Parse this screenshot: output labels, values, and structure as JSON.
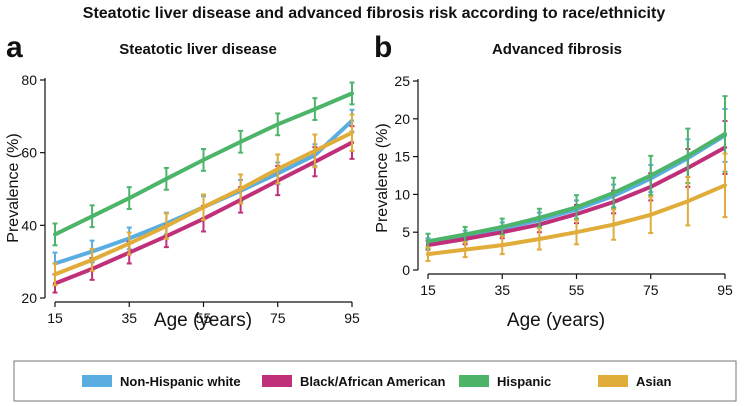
{
  "figure_title": "Steatotic liver disease and advanced fibrosis risk according to race/ethnicity",
  "colors": {
    "nhw": "#5aade0",
    "black": "#c0307a",
    "hispanic": "#4db56a",
    "asian": "#e0ac3a",
    "axis": "#111111"
  },
  "legend": [
    {
      "key": "nhw",
      "label": "Non-Hispanic white"
    },
    {
      "key": "black",
      "label": "Black/African American"
    },
    {
      "key": "hispanic",
      "label": "Hispanic"
    },
    {
      "key": "asian",
      "label": "Asian"
    }
  ],
  "chart_data": [
    {
      "type": "line",
      "panel": "a",
      "title": "Steatotic liver disease",
      "xlabel": "Age (years)",
      "ylabel": "Prevalence (%)",
      "xlim": [
        15,
        95
      ],
      "ylim": [
        20,
        80
      ],
      "xticks": [
        15,
        35,
        55,
        75,
        95
      ],
      "yticks": [
        20,
        40,
        60,
        80
      ],
      "x": [
        15,
        25,
        35,
        45,
        55,
        65,
        75,
        85,
        95
      ],
      "series": [
        {
          "key": "nhw",
          "name": "Non-Hispanic white",
          "values": [
            29.5,
            32.8,
            36.4,
            40.5,
            45.0,
            49.5,
            54.3,
            59.3,
            68.8
          ],
          "err": [
            3.0,
            3.0,
            3.0,
            3.0,
            3.0,
            3.0,
            3.0,
            3.0,
            3.0
          ]
        },
        {
          "key": "black",
          "name": "Black/African American",
          "values": [
            24.0,
            28.0,
            32.5,
            37.0,
            41.8,
            47.0,
            52.3,
            57.5,
            62.8
          ],
          "err": [
            2.5,
            3.0,
            3.0,
            3.0,
            3.5,
            3.5,
            4.0,
            4.0,
            4.5
          ]
        },
        {
          "key": "hispanic",
          "name": "Hispanic",
          "values": [
            37.5,
            42.5,
            47.5,
            52.8,
            58.0,
            63.0,
            67.8,
            72.0,
            76.3
          ],
          "err": [
            3.0,
            3.0,
            3.0,
            3.0,
            3.0,
            3.0,
            3.0,
            3.0,
            3.0
          ]
        },
        {
          "key": "asian",
          "name": "Asian",
          "values": [
            26.5,
            30.5,
            35.0,
            39.8,
            45.0,
            50.0,
            55.5,
            60.5,
            65.5
          ],
          "err": [
            3.0,
            3.0,
            3.0,
            3.5,
            3.5,
            4.0,
            4.0,
            4.5,
            5.0
          ]
        }
      ]
    },
    {
      "type": "line",
      "panel": "b",
      "title": "Advanced fibrosis",
      "xlabel": "Age (years)",
      "ylabel": "Prevalence (%)",
      "xlim": [
        15,
        95
      ],
      "ylim": [
        0,
        25
      ],
      "xticks": [
        15,
        35,
        55,
        75,
        95
      ],
      "yticks": [
        0,
        5,
        10,
        15,
        20,
        25
      ],
      "x": [
        15,
        25,
        35,
        45,
        55,
        65,
        75,
        85,
        95
      ],
      "series": [
        {
          "key": "nhw",
          "name": "Non-Hispanic white",
          "values": [
            3.6,
            4.5,
            5.5,
            6.6,
            8.0,
            9.8,
            12.1,
            14.8,
            17.8
          ],
          "err": [
            0.6,
            0.7,
            0.8,
            1.0,
            1.2,
            1.5,
            1.8,
            2.5,
            3.5
          ]
        },
        {
          "key": "black",
          "name": "Black/African American",
          "values": [
            3.3,
            4.1,
            5.0,
            6.0,
            7.4,
            9.0,
            11.0,
            13.5,
            16.2
          ],
          "err": [
            0.6,
            0.7,
            0.8,
            1.0,
            1.2,
            1.5,
            1.8,
            2.5,
            3.5
          ]
        },
        {
          "key": "hispanic",
          "name": "Hispanic",
          "values": [
            3.8,
            4.7,
            5.7,
            6.9,
            8.3,
            10.2,
            12.5,
            15.1,
            18.0
          ],
          "err": [
            1.0,
            1.0,
            1.1,
            1.2,
            1.6,
            2.0,
            2.6,
            3.6,
            5.0
          ]
        },
        {
          "key": "asian",
          "name": "Asian",
          "values": [
            2.1,
            2.7,
            3.3,
            4.1,
            5.0,
            6.0,
            7.3,
            9.1,
            11.2
          ],
          "err": [
            0.9,
            1.0,
            1.2,
            1.4,
            1.6,
            2.0,
            2.4,
            3.2,
            4.2
          ]
        }
      ]
    }
  ]
}
